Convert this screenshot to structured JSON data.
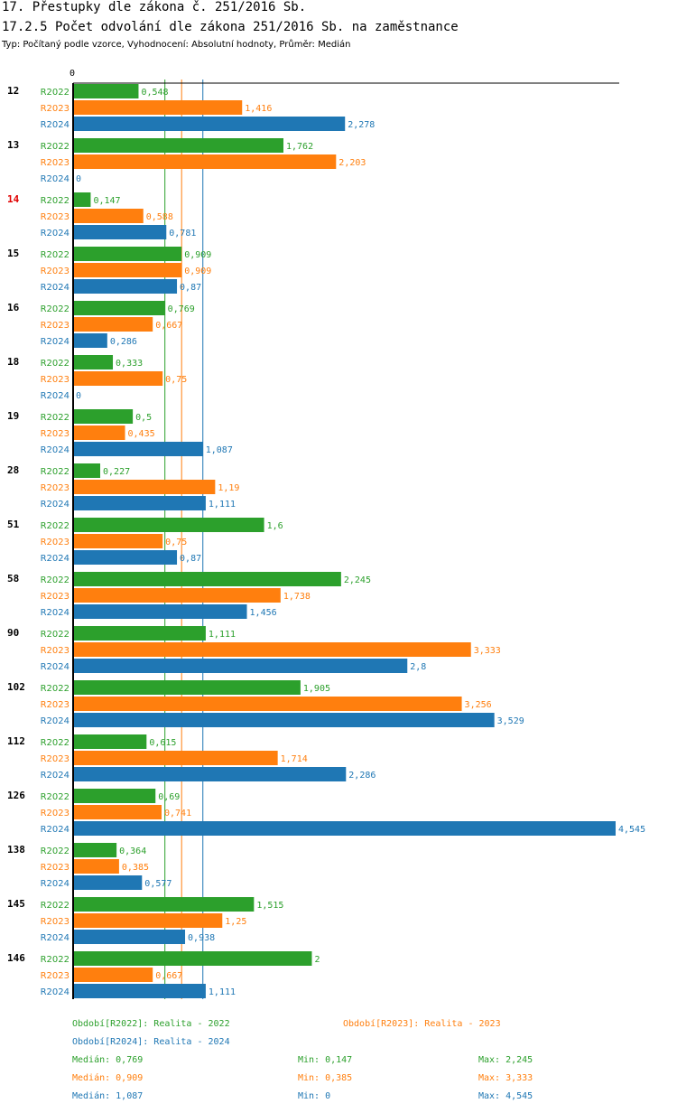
{
  "header": {
    "title": "17. Přestupky dle zákona č. 251/2016 Sb.",
    "subtitle": "17.2.5 Počet odvolání dle zákona 251/2016 Sb. na zaměstnance",
    "info": "Typ: Počítaný podle vzorce, Vyhodnocení: Absolutní hodnoty, Průměr: Medián"
  },
  "colors": {
    "R2022": "#2ca02c",
    "R2023": "#ff7f0e",
    "R2024": "#1f77b4",
    "highlight": "#e00000"
  },
  "chart_data": {
    "type": "bar",
    "orientation": "horizontal",
    "axis_zero_label": "0",
    "xlim": [
      0,
      4.545
    ],
    "categories": [
      "12",
      "13",
      "14",
      "15",
      "16",
      "18",
      "19",
      "28",
      "51",
      "58",
      "90",
      "102",
      "112",
      "126",
      "138",
      "145",
      "146"
    ],
    "highlighted_category": "14",
    "series": [
      {
        "name": "R2022",
        "values": [
          0.548,
          1.762,
          0.147,
          0.909,
          0.769,
          0.333,
          0.5,
          0.227,
          1.6,
          2.245,
          1.111,
          1.905,
          0.615,
          0.69,
          0.364,
          1.515,
          2
        ],
        "labels": [
          "0,548",
          "1,762",
          "0,147",
          "0,909",
          "0,769",
          "0,333",
          "0,5",
          "0,227",
          "1,6",
          "2,245",
          "1,111",
          "1,905",
          "0,615",
          "0,69",
          "0,364",
          "1,515",
          "2"
        ]
      },
      {
        "name": "R2023",
        "values": [
          1.416,
          2.203,
          0.588,
          0.909,
          0.667,
          0.75,
          0.435,
          1.19,
          0.75,
          1.738,
          3.333,
          3.256,
          1.714,
          0.741,
          0.385,
          1.25,
          0.667
        ],
        "labels": [
          "1,416",
          "2,203",
          "0,588",
          "0,909",
          "0,667",
          "0,75",
          "0,435",
          "1,19",
          "0,75",
          "1,738",
          "3,333",
          "3,256",
          "1,714",
          "0,741",
          "0,385",
          "1,25",
          "0,667"
        ]
      },
      {
        "name": "R2024",
        "values": [
          2.278,
          0,
          0.781,
          0.87,
          0.286,
          0,
          1.087,
          1.111,
          0.87,
          1.456,
          2.8,
          3.529,
          2.286,
          4.545,
          0.577,
          0.938,
          1.111
        ],
        "labels": [
          "2,278",
          "0",
          "0,781",
          "0,87",
          "0,286",
          "0",
          "1,087",
          "1,111",
          "0,87",
          "1,456",
          "2,8",
          "3,529",
          "2,286",
          "4,545",
          "0,577",
          "0,938",
          "1,111"
        ]
      }
    ],
    "medians": [
      0.769,
      0.909,
      1.087
    ]
  },
  "legend": {
    "r2022": "Období[R2022]: Realita - 2022",
    "r2023": "Období[R2023]: Realita - 2023",
    "r2024": "Období[R2024]: Realita - 2024"
  },
  "stats": {
    "r2022": {
      "median": "Medián: 0,769",
      "min": "Min: 0,147",
      "max": "Max: 2,245"
    },
    "r2023": {
      "median": "Medián: 0,909",
      "min": "Min: 0,385",
      "max": "Max: 3,333"
    },
    "r2024": {
      "median": "Medián: 1,087",
      "min": "Min: 0",
      "max": "Max: 4,545"
    }
  }
}
